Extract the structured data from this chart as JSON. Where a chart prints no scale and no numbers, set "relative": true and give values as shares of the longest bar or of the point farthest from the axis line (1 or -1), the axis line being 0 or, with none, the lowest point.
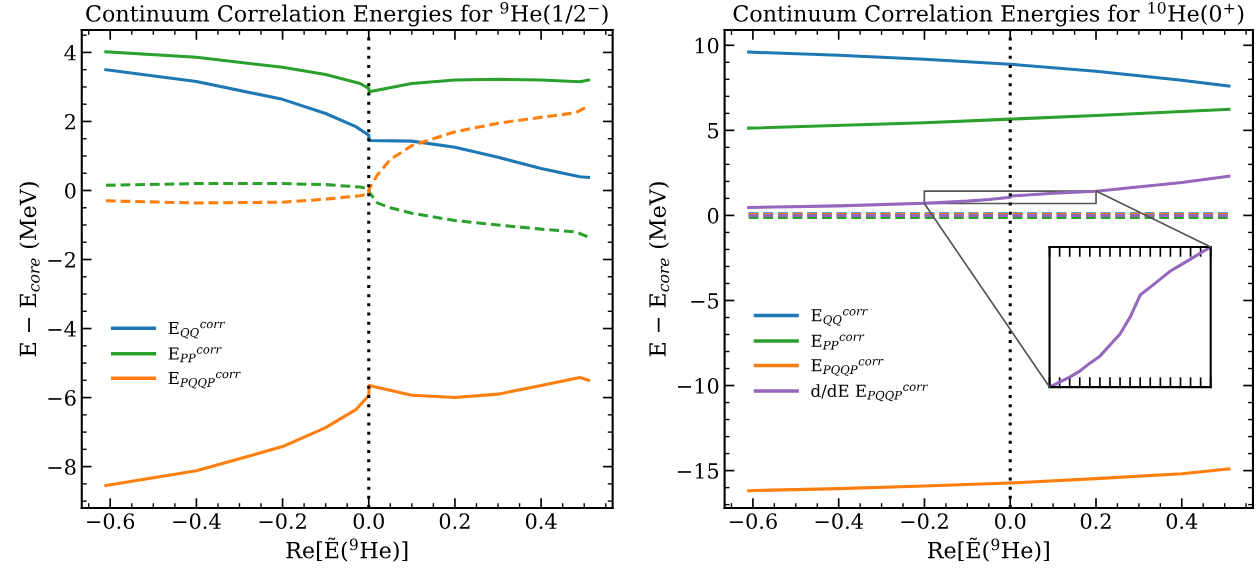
{
  "chart_data": [
    {
      "type": "line",
      "title": "Continuum Correlation Energies for $^{9}$He(1/2$^{−}$)",
      "xlabel": "Re[Ẽ($^{9}$He)]",
      "ylabel": "E − E$_{core}$ (MeV)",
      "xlim": [
        -0.666,
        0.566
      ],
      "ylim": [
        -9.2,
        4.65
      ],
      "xticks": [
        {
          "value": -0.6,
          "label": "−0.6"
        },
        {
          "value": -0.4,
          "label": "−0.4"
        },
        {
          "value": -0.2,
          "label": "−0.2"
        },
        {
          "value": 0,
          "label": "0.0"
        },
        {
          "value": 0.2,
          "label": "0.2"
        },
        {
          "value": 0.4,
          "label": "0.4"
        }
      ],
      "yticks": [
        {
          "value": -8,
          "label": "−8"
        },
        {
          "value": -6,
          "label": "−6"
        },
        {
          "value": -4,
          "label": "−4"
        },
        {
          "value": -2,
          "label": "−2"
        },
        0,
        2,
        4
      ],
      "grid": false,
      "legend": "left",
      "ref_lines": [
        {
          "axis": "x",
          "value": 0,
          "color": "#000000",
          "line_style": "dotted"
        }
      ],
      "series": [
        {
          "name": "E$_{QQ}$$^{corr}$",
          "color": "#1f77b4",
          "line_style": "solid",
          "x": [
            -0.61,
            -0.4,
            -0.2,
            -0.1,
            -0.03,
            0,
            0.001,
            0.1,
            0.2,
            0.3,
            0.4,
            0.49,
            0.51
          ],
          "values": [
            3.5,
            3.16,
            2.64,
            2.23,
            1.85,
            1.6,
            1.45,
            1.43,
            1.25,
            0.96,
            0.64,
            0.4,
            0.38
          ]
        },
        {
          "name": "E$_{PP}$$^{corr}$",
          "color": "#2ca02c",
          "line_style": "solid",
          "x": [
            -0.61,
            -0.4,
            -0.2,
            -0.1,
            -0.02,
            0,
            0.001,
            0.1,
            0.2,
            0.3,
            0.4,
            0.49,
            0.51
          ],
          "values": [
            4.02,
            3.86,
            3.57,
            3.36,
            3.1,
            2.96,
            2.86,
            3.1,
            3.2,
            3.22,
            3.2,
            3.15,
            3.2
          ]
        },
        {
          "name": "E$_{PQQP}$$^{corr}$",
          "color": "#ff7f0e",
          "line_style": "solid",
          "x": [
            -0.61,
            -0.4,
            -0.2,
            -0.1,
            -0.03,
            0,
            0.001,
            0.1,
            0.2,
            0.3,
            0.4,
            0.49,
            0.51
          ],
          "values": [
            -8.55,
            -8.12,
            -7.42,
            -6.87,
            -6.35,
            -5.94,
            -5.65,
            -5.93,
            -6.0,
            -5.9,
            -5.65,
            -5.42,
            -5.5
          ]
        },
        {
          "color": "#2ca02c",
          "line_style": "dashed",
          "x": [
            -0.61,
            -0.4,
            -0.2,
            -0.1,
            -0.02,
            0,
            0.001,
            0.02,
            0.05,
            0.1,
            0.2,
            0.3,
            0.4,
            0.48,
            0.51
          ],
          "values": [
            0.15,
            0.2,
            0.2,
            0.17,
            0.1,
            0.05,
            -0.05,
            -0.36,
            -0.5,
            -0.66,
            -0.87,
            -1.0,
            -1.12,
            -1.2,
            -1.35
          ]
        },
        {
          "color": "#ff7f0e",
          "line_style": "dashed",
          "x": [
            -0.61,
            -0.4,
            -0.2,
            -0.1,
            -0.02,
            0,
            0.001,
            0.02,
            0.05,
            0.1,
            0.2,
            0.3,
            0.4,
            0.48,
            0.51
          ],
          "values": [
            -0.3,
            -0.36,
            -0.34,
            -0.25,
            -0.15,
            -0.1,
            0.05,
            0.45,
            0.9,
            1.3,
            1.7,
            1.95,
            2.12,
            2.25,
            2.45
          ]
        }
      ]
    },
    {
      "type": "line",
      "title": "Continuum Correlation Energies for $^{10}$He(0$^{+}$)",
      "xlabel": "Re[Ẽ($^{9}$He)]",
      "ylabel": "E − E$_{core}$ (MeV)",
      "xlim": [
        -0.666,
        0.566
      ],
      "ylim": [
        -17.2,
        10.9
      ],
      "xticks": [
        {
          "value": -0.6,
          "label": "−0.6"
        },
        {
          "value": -0.4,
          "label": "−0.4"
        },
        {
          "value": -0.2,
          "label": "−0.2"
        },
        {
          "value": 0,
          "label": "0.0"
        },
        {
          "value": 0.2,
          "label": "0.2"
        },
        {
          "value": 0.4,
          "label": "0.4"
        }
      ],
      "yticks": [
        {
          "value": -15,
          "label": "−15"
        },
        {
          "value": -10,
          "label": "−10"
        },
        {
          "value": -5,
          "label": "−5"
        },
        0,
        5,
        10
      ],
      "grid": false,
      "legend": "left",
      "ref_lines": [
        {
          "axis": "x",
          "value": 0,
          "color": "#000000",
          "line_style": "dotted"
        }
      ],
      "series": [
        {
          "name": "E$_{QQ}$$^{corr}$",
          "color": "#1f77b4",
          "line_style": "solid",
          "x": [
            -0.61,
            -0.4,
            -0.2,
            0,
            0.2,
            0.4,
            0.51
          ],
          "values": [
            9.6,
            9.41,
            9.18,
            8.89,
            8.47,
            7.95,
            7.6
          ]
        },
        {
          "name": "E$_{PP}$$^{corr}$",
          "color": "#2ca02c",
          "line_style": "solid",
          "x": [
            -0.61,
            -0.2,
            0,
            0.2,
            0.51
          ],
          "values": [
            5.13,
            5.45,
            5.66,
            5.87,
            6.24
          ]
        },
        {
          "name": "E$_{PQQP}$$^{corr}$",
          "color": "#ff7f0e",
          "line_style": "solid",
          "x": [
            -0.61,
            -0.4,
            -0.2,
            0,
            0.2,
            0.4,
            0.51
          ],
          "values": [
            -16.18,
            -16.06,
            -15.9,
            -15.73,
            -15.47,
            -15.19,
            -14.9
          ]
        },
        {
          "name": "d/dE E$_{PQQP}$$^{corr}$",
          "color": "#9467bd",
          "line_style": "solid",
          "x": [
            -0.61,
            -0.4,
            -0.2,
            -0.1,
            -0.05,
            -0.01,
            0,
            0.001,
            0.1,
            0.2,
            0.4,
            0.51
          ],
          "values": [
            0.47,
            0.56,
            0.72,
            0.84,
            0.93,
            1.04,
            1.07,
            1.14,
            1.3,
            1.42,
            1.93,
            2.3
          ]
        },
        {
          "color": "#1f77b4",
          "line_style": "dashed",
          "x": [
            -0.61,
            0,
            0.51
          ],
          "values": [
            0.1,
            0.1,
            0.1
          ]
        },
        {
          "color": "#2ca02c",
          "line_style": "dashed",
          "x": [
            -0.61,
            0,
            0.51
          ],
          "values": [
            -0.12,
            -0.12,
            -0.12
          ]
        },
        {
          "color": "#ff7f0e",
          "line_style": "dashed",
          "x": [
            -0.61,
            0,
            0.51
          ],
          "values": [
            0.05,
            0.05,
            0.05
          ]
        },
        {
          "color": "#9467bd",
          "line_style": "dashed",
          "x": [
            -0.61,
            0,
            0.51
          ],
          "values": [
            0.0,
            0.0,
            0.0
          ]
        }
      ]
    },
    {
      "type": "line",
      "relative": true,
      "categories": [
        null,
        null,
        null,
        null,
        null,
        null,
        null,
        null,
        null,
        null,
        null,
        null,
        null,
        null,
        null,
        null,
        null
      ],
      "series": [
        {
          "color": "#9467bd",
          "line_style": "solid",
          "values": [
            0,
            0.036,
            0.071,
            0.114,
            0.171,
            0.221,
            0.3,
            0.379,
            0.5,
            0.657,
            0.714,
            0.771,
            0.829,
            0.871,
            0.914,
            0.957,
            1.0
          ]
        }
      ]
    }
  ]
}
